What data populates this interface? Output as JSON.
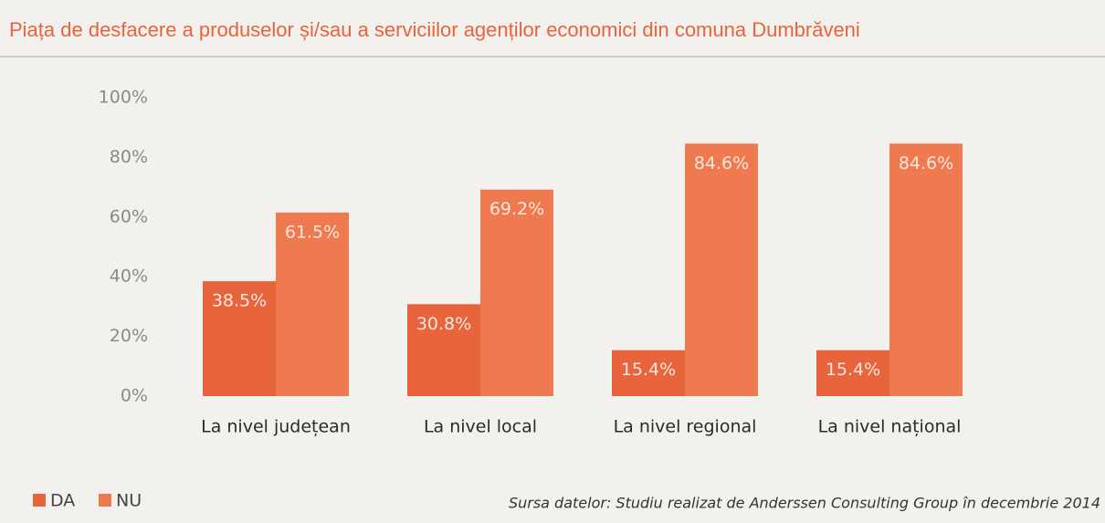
{
  "chart_data": {
    "type": "bar",
    "title": "Piața de desfacere a produselor și/sau a serviciilor agenților economici din comuna Dumbrăveni",
    "categories": [
      "La nivel județean",
      "La nivel local",
      "La nivel regional",
      "La nivel național"
    ],
    "series": [
      {
        "name": "DA",
        "color": "#e8643c",
        "values": [
          38.5,
          30.8,
          15.4,
          15.4
        ],
        "value_labels": [
          "38.5%",
          "30.8%",
          "15.4%",
          "15.4%"
        ]
      },
      {
        "name": "NU",
        "color": "#f07a50",
        "values": [
          61.5,
          69.2,
          84.6,
          84.6
        ],
        "value_labels": [
          "61.5%",
          "69.2%",
          "84.6%",
          "84.6%"
        ]
      }
    ],
    "ylim": [
      0,
      100
    ],
    "yticks": [
      {
        "value": 0,
        "label": "0%"
      },
      {
        "value": 20,
        "label": "20%"
      },
      {
        "value": 40,
        "label": "40%"
      },
      {
        "value": 60,
        "label": "60%"
      },
      {
        "value": 80,
        "label": "80%"
      },
      {
        "value": 100,
        "label": "100%"
      }
    ],
    "legend": "bottom-left",
    "source": "Sursa datelor: Studiu realizat de Anderssen Consulting Group în decembrie 2014"
  }
}
